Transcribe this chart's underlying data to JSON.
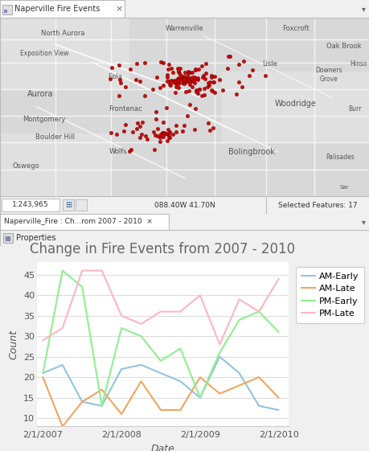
{
  "title": "Change in Fire Events from 2007 - 2010",
  "title_color": "#666666",
  "xlabel": "Date",
  "ylabel": "Count",
  "bg_color": "#ffffff",
  "grid_color": "#dddddd",
  "ylim": [
    8,
    48
  ],
  "yticks": [
    10,
    15,
    20,
    25,
    30,
    35,
    40,
    45
  ],
  "xtick_labels": [
    "2/1/2007",
    "2/1/2008",
    "2/1/2009",
    "2/1/2010"
  ],
  "xtick_pos": [
    0,
    4,
    8,
    12
  ],
  "series": {
    "AM-Early": {
      "color": "#92C5DE",
      "x": [
        0,
        1,
        2,
        3,
        4,
        5,
        6,
        7,
        8,
        9,
        10,
        11,
        12
      ],
      "y": [
        21,
        23,
        14,
        13,
        22,
        23,
        21,
        19,
        15,
        25,
        21,
        13,
        12
      ]
    },
    "AM-Late": {
      "color": "#F4A460",
      "x": [
        0,
        1,
        2,
        3,
        4,
        5,
        6,
        7,
        8,
        9,
        10,
        11,
        12
      ],
      "y": [
        20,
        8,
        14,
        17,
        11,
        19,
        12,
        12,
        20,
        16,
        18,
        20,
        15
      ]
    },
    "PM-Early": {
      "color": "#90EE90",
      "x": [
        0,
        1,
        2,
        3,
        4,
        5,
        6,
        7,
        8,
        9,
        10,
        11,
        12
      ],
      "y": [
        21,
        46,
        42,
        13,
        32,
        30,
        24,
        27,
        15,
        26,
        34,
        36,
        31
      ]
    },
    "PM-Late": {
      "color": "#FFB6C1",
      "x": [
        0,
        1,
        2,
        3,
        4,
        5,
        6,
        7,
        8,
        9,
        10,
        11,
        12
      ],
      "y": [
        29,
        32,
        46,
        46,
        35,
        33,
        36,
        36,
        40,
        28,
        39,
        36,
        44
      ]
    }
  },
  "series_order": [
    "AM-Early",
    "AM-Late",
    "PM-Early",
    "PM-Late"
  ],
  "map_bg": "#d8d8d8",
  "map_road_color": "#ffffff",
  "map_water_color": "#c8dff0",
  "tab1_text": "Naperville Fire Events",
  "tab2_text": "Naperville_Fire : Ch...rom 2007 - 2010",
  "properties_text": "Properties",
  "status_scale": "1:243,965",
  "status_coords": "088.40W 41.70N",
  "status_selected": "Selected Features: 17",
  "title_fontsize": 12,
  "axis_label_fontsize": 9,
  "tick_fontsize": 8,
  "legend_fontsize": 8,
  "outer_bg": "#f0f0f0",
  "panel_bg": "#f5f5f5",
  "tab_bg": "#e8e8e8",
  "tab_active_bg": "#ffffff",
  "border_color": "#bbbbbb"
}
